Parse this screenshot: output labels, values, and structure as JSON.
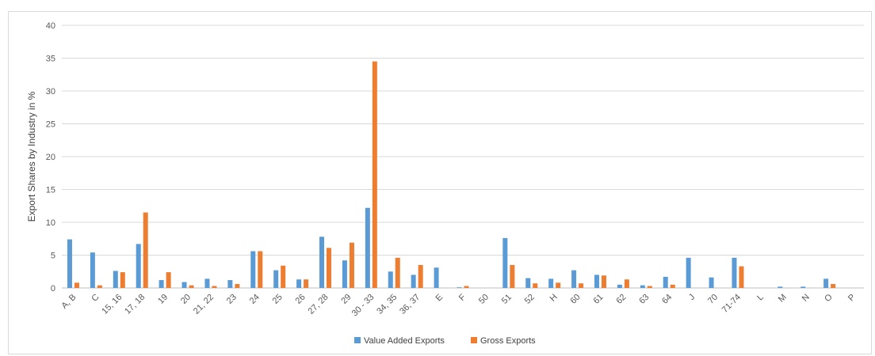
{
  "chart_data": {
    "type": "bar",
    "ylabel": "Export Shares by Industry in %",
    "xlabel": "",
    "ylim": [
      0,
      40
    ],
    "yticks": [
      0,
      5,
      10,
      15,
      20,
      25,
      30,
      35,
      40
    ],
    "grid": true,
    "legend_position": "bottom",
    "categories": [
      "A, B",
      "C",
      "15, 16",
      "17, 18",
      "19",
      "20",
      "21, 22",
      "23",
      "24",
      "25",
      "26",
      "27, 28",
      "29",
      "30 - 33",
      "34, 35",
      "36, 37",
      "E",
      "F",
      "50",
      "51",
      "52",
      "H",
      "60",
      "61",
      "62",
      "63",
      "64",
      "J",
      "70",
      "71-74",
      "L",
      "M",
      "N",
      "O",
      "P"
    ],
    "series": [
      {
        "name": "Value Added Exports",
        "color": "#5b9bd5",
        "values": [
          7.4,
          5.4,
          2.6,
          6.7,
          1.2,
          0.9,
          1.4,
          1.2,
          5.6,
          2.7,
          1.3,
          7.8,
          4.2,
          12.2,
          2.5,
          2.0,
          3.1,
          0.1,
          0.0,
          7.6,
          1.5,
          1.4,
          2.7,
          2.0,
          0.5,
          0.4,
          1.7,
          4.6,
          1.6,
          4.6,
          0.0,
          0.2,
          0.2,
          1.4,
          0.0
        ]
      },
      {
        "name": "Gross Exports",
        "color": "#ed7d31",
        "values": [
          0.8,
          0.4,
          2.4,
          11.5,
          2.4,
          0.4,
          0.3,
          0.6,
          5.6,
          3.4,
          1.3,
          6.1,
          6.9,
          34.5,
          4.6,
          3.5,
          0.0,
          0.3,
          0.0,
          3.5,
          0.7,
          0.8,
          0.7,
          1.9,
          1.3,
          0.3,
          0.5,
          0.0,
          0.0,
          3.3,
          0.0,
          0.0,
          0.0,
          0.6,
          0.0
        ]
      }
    ]
  }
}
